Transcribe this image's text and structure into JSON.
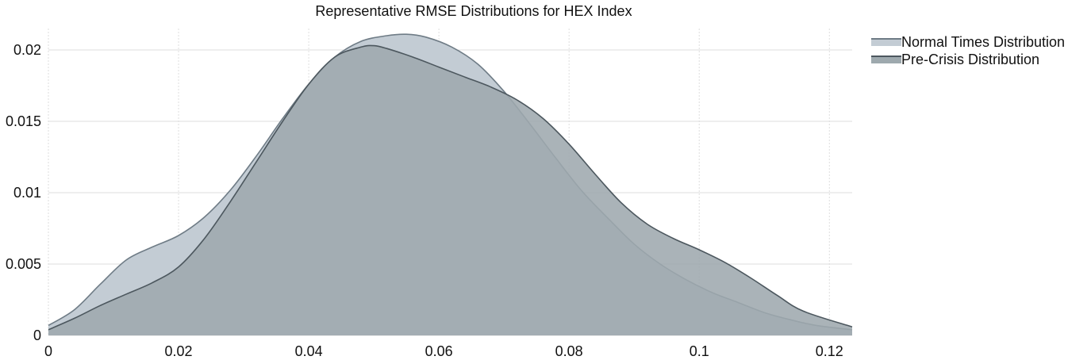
{
  "chart_data": {
    "type": "area",
    "title": "Representative RMSE Distributions for HEX Index",
    "xlabel": "",
    "ylabel": "",
    "xlim": [
      0,
      0.1235
    ],
    "ylim": [
      0,
      0.0215
    ],
    "xticks": [
      0,
      0.02,
      0.04,
      0.06,
      0.08,
      0.1,
      0.12
    ],
    "xtick_labels": [
      "0",
      "0.02",
      "0.04",
      "0.06",
      "0.08",
      "0.1",
      "0.12"
    ],
    "yticks": [
      0,
      0.005,
      0.01,
      0.015,
      0.02
    ],
    "ytick_labels": [
      "0",
      "0.005",
      "0.01",
      "0.015",
      "0.02"
    ],
    "grid": true,
    "legend_position": "top-right-outside",
    "series": [
      {
        "name": "Normal Times Distribution",
        "fill": "#c3ccd4",
        "stroke": "#6f7c86",
        "x": [
          0,
          0.004,
          0.008,
          0.012,
          0.016,
          0.02,
          0.024,
          0.028,
          0.032,
          0.036,
          0.04,
          0.044,
          0.048,
          0.052,
          0.055,
          0.058,
          0.062,
          0.066,
          0.07,
          0.074,
          0.078,
          0.082,
          0.086,
          0.09,
          0.094,
          0.098,
          0.102,
          0.106,
          0.11,
          0.114,
          0.118,
          0.1235
        ],
        "y": [
          0.0007,
          0.0018,
          0.0036,
          0.0053,
          0.0062,
          0.007,
          0.0083,
          0.0102,
          0.0126,
          0.0152,
          0.0176,
          0.0195,
          0.0206,
          0.021,
          0.0211,
          0.0209,
          0.0202,
          0.019,
          0.0171,
          0.0148,
          0.0124,
          0.0101,
          0.0082,
          0.0064,
          0.005,
          0.0039,
          0.003,
          0.0023,
          0.0016,
          0.0011,
          0.0007,
          0.0004
        ]
      },
      {
        "name": "Pre-Crisis Distribution",
        "fill": "#9ea9ae",
        "stroke": "#4c575e",
        "x": [
          0,
          0.004,
          0.008,
          0.012,
          0.016,
          0.02,
          0.024,
          0.028,
          0.032,
          0.036,
          0.04,
          0.044,
          0.048,
          0.05,
          0.052,
          0.056,
          0.06,
          0.064,
          0.068,
          0.072,
          0.076,
          0.08,
          0.084,
          0.088,
          0.092,
          0.096,
          0.1,
          0.104,
          0.108,
          0.112,
          0.116,
          0.1235
        ],
        "y": [
          0.0004,
          0.0012,
          0.0021,
          0.0029,
          0.0037,
          0.0048,
          0.0068,
          0.0094,
          0.0122,
          0.015,
          0.0176,
          0.0195,
          0.0202,
          0.0203,
          0.0201,
          0.0195,
          0.0188,
          0.0181,
          0.0174,
          0.0165,
          0.0152,
          0.0134,
          0.0113,
          0.0093,
          0.0078,
          0.0068,
          0.006,
          0.0051,
          0.004,
          0.0028,
          0.0017,
          0.0006
        ]
      }
    ]
  }
}
